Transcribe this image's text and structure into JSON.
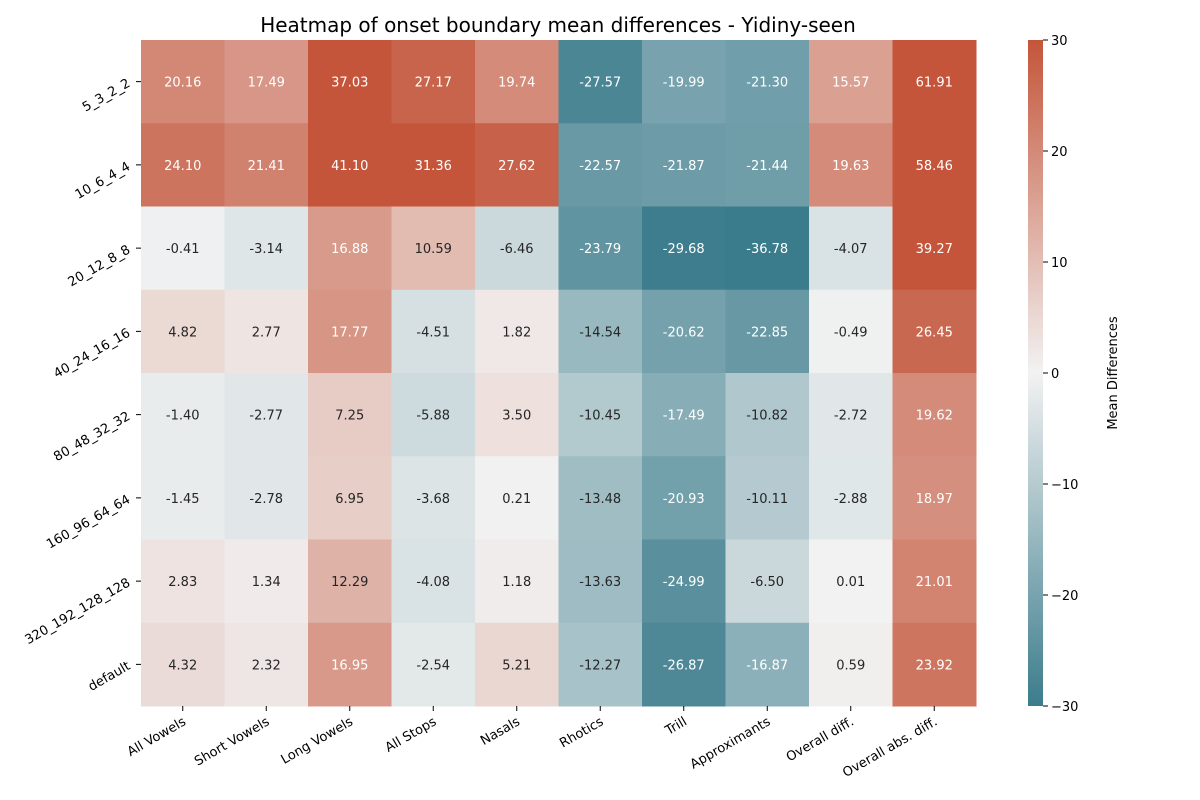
{
  "chart_data": {
    "type": "heatmap",
    "title": "Heatmap of onset boundary mean differences - Yidiny-seen",
    "rows": [
      "5_3_2_2",
      "10_6_4_4",
      "20_12_8_8",
      "40_24_16_16",
      "80_48_32_32",
      "160_96_64_64",
      "320_192_128_128",
      "default"
    ],
    "columns": [
      "All Vowels",
      "Short Vowels",
      "Long Vowels",
      "All Stops",
      "Nasals",
      "Rhotics",
      "Trill",
      "Approximants",
      "Overall diff.",
      "Overall abs. diff."
    ],
    "values": [
      [
        20.16,
        17.49,
        37.03,
        27.17,
        19.74,
        -27.57,
        -19.99,
        -21.3,
        15.57,
        61.91
      ],
      [
        24.1,
        21.41,
        41.1,
        31.36,
        27.62,
        -22.57,
        -21.87,
        -21.44,
        19.63,
        58.46
      ],
      [
        -0.41,
        -3.14,
        16.88,
        10.59,
        -6.46,
        -23.79,
        -29.68,
        -36.78,
        -4.07,
        39.27
      ],
      [
        4.82,
        2.77,
        17.77,
        -4.51,
        1.82,
        -14.54,
        -20.62,
        -22.85,
        -0.49,
        26.45
      ],
      [
        -1.4,
        -2.77,
        7.25,
        -5.88,
        3.5,
        -10.45,
        -17.49,
        -10.82,
        -2.72,
        19.62
      ],
      [
        -1.45,
        -2.78,
        6.95,
        -3.68,
        0.21,
        -13.48,
        -20.93,
        -10.11,
        -2.88,
        18.97
      ],
      [
        2.83,
        1.34,
        12.29,
        -4.08,
        1.18,
        -13.63,
        -24.99,
        -6.5,
        0.01,
        21.01
      ],
      [
        4.32,
        2.32,
        16.95,
        -2.54,
        5.21,
        -12.27,
        -26.87,
        -16.87,
        0.59,
        23.92
      ]
    ],
    "vmin": -30,
    "vmax": 30,
    "colorbar": {
      "label": "Mean Differences",
      "ticks": [
        30,
        20,
        10,
        0,
        -10,
        -20,
        -30
      ],
      "tick_labels": [
        "30",
        "20",
        "10",
        "0",
        "−10",
        "−20",
        "−30"
      ]
    },
    "colors": {
      "low": "#3b7c8c",
      "mid": "#f2f2f2",
      "high": "#c4553a"
    }
  }
}
